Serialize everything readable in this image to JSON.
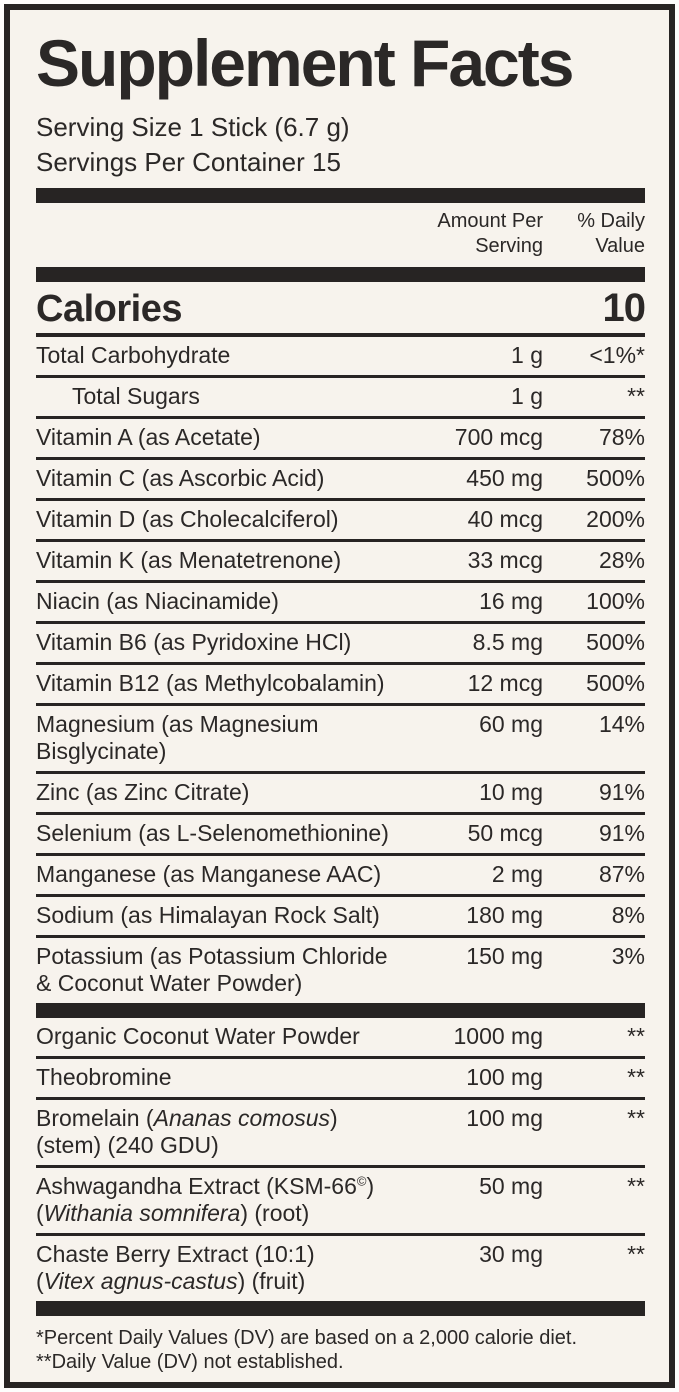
{
  "colors": {
    "label_background": "#f7f3ed",
    "outer_background": "#fdfdfc",
    "ink": "#2b2827",
    "bar": "#272423",
    "border": "#272423"
  },
  "label": {
    "title": "Supplement Facts",
    "serving_size": "Serving Size 1 Stick (6.7 g)",
    "servings_per_container": "Servings Per Container 15"
  },
  "columns": {
    "amount_line1": "Amount Per",
    "amount_line2": "Serving",
    "dv_line1": "% Daily",
    "dv_line2": "Value"
  },
  "calories": {
    "label": "Calories",
    "value": "10"
  },
  "rows": [
    {
      "lines": [
        [
          {
            "text": "Total Carbohydrate"
          }
        ]
      ],
      "amount": "1 g",
      "dv": "<1%*",
      "indent": false,
      "sep_after": "thin"
    },
    {
      "lines": [
        [
          {
            "text": "Total Sugars"
          }
        ]
      ],
      "amount": "1 g",
      "dv": "**",
      "indent": true,
      "sep_after": "thin"
    },
    {
      "lines": [
        [
          {
            "text": "Vitamin A (as Acetate)"
          }
        ]
      ],
      "amount": "700 mcg",
      "dv": "78%",
      "indent": false,
      "sep_after": "thin"
    },
    {
      "lines": [
        [
          {
            "text": "Vitamin C (as Ascorbic Acid)"
          }
        ]
      ],
      "amount": "450 mg",
      "dv": "500%",
      "indent": false,
      "sep_after": "thin"
    },
    {
      "lines": [
        [
          {
            "text": "Vitamin D (as Cholecalciferol)"
          }
        ]
      ],
      "amount": "40 mcg",
      "dv": "200%",
      "indent": false,
      "sep_after": "thin"
    },
    {
      "lines": [
        [
          {
            "text": "Vitamin K (as Menatetrenone)"
          }
        ]
      ],
      "amount": "33 mcg",
      "dv": "28%",
      "indent": false,
      "sep_after": "thin"
    },
    {
      "lines": [
        [
          {
            "text": "Niacin (as Niacinamide)"
          }
        ]
      ],
      "amount": "16 mg",
      "dv": "100%",
      "indent": false,
      "sep_after": "thin"
    },
    {
      "lines": [
        [
          {
            "text": "Vitamin B6 (as Pyridoxine HCl)"
          }
        ]
      ],
      "amount": "8.5 mg",
      "dv": "500%",
      "indent": false,
      "sep_after": "thin"
    },
    {
      "lines": [
        [
          {
            "text": "Vitamin B12 (as Methylcobalamin)"
          }
        ]
      ],
      "amount": "12 mcg",
      "dv": "500%",
      "indent": false,
      "sep_after": "thin"
    },
    {
      "lines": [
        [
          {
            "text": "Magnesium (as Magnesium"
          }
        ],
        [
          {
            "text": "Bisglycinate)"
          }
        ]
      ],
      "amount": "60 mg",
      "dv": "14%",
      "indent": false,
      "sep_after": "thin"
    },
    {
      "lines": [
        [
          {
            "text": "Zinc (as Zinc Citrate)"
          }
        ]
      ],
      "amount": "10 mg",
      "dv": "91%",
      "indent": false,
      "sep_after": "thin"
    },
    {
      "lines": [
        [
          {
            "text": "Selenium (as L-Selenomethionine)"
          }
        ]
      ],
      "amount": "50 mcg",
      "dv": "91%",
      "indent": false,
      "sep_after": "thin"
    },
    {
      "lines": [
        [
          {
            "text": "Manganese (as Manganese AAC)"
          }
        ]
      ],
      "amount": "2 mg",
      "dv": "87%",
      "indent": false,
      "sep_after": "thin"
    },
    {
      "lines": [
        [
          {
            "text": "Sodium (as Himalayan Rock Salt)"
          }
        ]
      ],
      "amount": "180 mg",
      "dv": "8%",
      "indent": false,
      "sep_after": "thin"
    },
    {
      "lines": [
        [
          {
            "text": "Potassium (as Potassium Chloride"
          }
        ],
        [
          {
            "text": "& Coconut Water Powder)"
          }
        ]
      ],
      "amount": "150 mg",
      "dv": "3%",
      "indent": false,
      "sep_after": "bar"
    },
    {
      "lines": [
        [
          {
            "text": "Organic Coconut Water Powder"
          }
        ]
      ],
      "amount": "1000 mg",
      "dv": "**",
      "indent": false,
      "sep_after": "thin"
    },
    {
      "lines": [
        [
          {
            "text": "Theobromine"
          }
        ]
      ],
      "amount": "100 mg",
      "dv": "**",
      "indent": false,
      "sep_after": "thin"
    },
    {
      "lines": [
        [
          {
            "text": "Bromelain ("
          },
          {
            "text": "Ananas comosus",
            "italic": true
          },
          {
            "text": ")"
          }
        ],
        [
          {
            "text": "(stem) (240 GDU)"
          }
        ]
      ],
      "amount": "100 mg",
      "dv": "**",
      "indent": false,
      "sep_after": "thin"
    },
    {
      "lines": [
        [
          {
            "text": "Ashwagandha Extract (KSM-66"
          },
          {
            "text": "©",
            "sup": true
          },
          {
            "text": ")"
          }
        ],
        [
          {
            "text": "("
          },
          {
            "text": "Withania somnifera",
            "italic": true
          },
          {
            "text": ") (root)"
          }
        ]
      ],
      "amount": "50 mg",
      "dv": "**",
      "indent": false,
      "sep_after": "thin"
    },
    {
      "lines": [
        [
          {
            "text": "Chaste Berry Extract (10:1)"
          }
        ],
        [
          {
            "text": "("
          },
          {
            "text": "Vitex agnus-castus",
            "italic": true
          },
          {
            "text": ") (fruit)"
          }
        ]
      ],
      "amount": "30 mg",
      "dv": "**",
      "indent": false,
      "sep_after": "bar"
    }
  ],
  "footnotes": [
    "*Percent Daily Values (DV) are based on a 2,000 calorie diet.",
    "**Daily Value (DV) not established."
  ]
}
